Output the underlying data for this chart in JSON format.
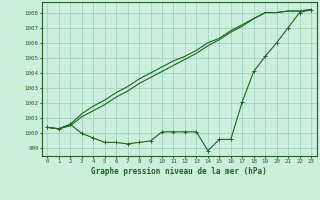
{
  "title": "Graphe pression niveau de la mer (hPa)",
  "bg_color": "#cceedd",
  "grid_color": "#99ccbb",
  "line_color": "#1a6620",
  "xlim": [
    -0.5,
    23.5
  ],
  "ylim": [
    998.5,
    1008.7
  ],
  "yticks": [
    999,
    1000,
    1001,
    1002,
    1003,
    1004,
    1005,
    1006,
    1007,
    1008
  ],
  "xticks": [
    0,
    1,
    2,
    3,
    4,
    5,
    6,
    7,
    8,
    9,
    10,
    11,
    12,
    13,
    14,
    15,
    16,
    17,
    18,
    19,
    20,
    21,
    22,
    23
  ],
  "line1": [
    1000.4,
    1000.3,
    1000.5,
    1001.1,
    1001.5,
    1001.9,
    1002.4,
    1002.8,
    1003.3,
    1003.7,
    1004.1,
    1004.5,
    1004.9,
    1005.3,
    1005.8,
    1006.2,
    1006.7,
    1007.1,
    1007.6,
    1008.0,
    1008.0,
    1008.1,
    1008.1,
    1008.2
  ],
  "line2": [
    1000.4,
    1000.3,
    1000.6,
    1001.3,
    1001.8,
    1002.2,
    1002.7,
    1003.1,
    1003.6,
    1004.0,
    1004.4,
    1004.8,
    1005.1,
    1005.5,
    1006.0,
    1006.3,
    1006.8,
    1007.2,
    1007.6,
    1008.0,
    1008.0,
    1008.1,
    1008.1,
    1008.2
  ],
  "line3": [
    1000.4,
    1000.3,
    1000.6,
    1000.0,
    999.7,
    999.4,
    999.4,
    999.3,
    999.4,
    999.5,
    1000.1,
    1000.1,
    1000.1,
    1000.1,
    998.85,
    999.6,
    999.6,
    1002.1,
    1004.1,
    1005.1,
    1006.0,
    1007.0,
    1008.0,
    1008.2
  ],
  "title_fontsize": 5.5,
  "tick_fontsize": 4.2
}
